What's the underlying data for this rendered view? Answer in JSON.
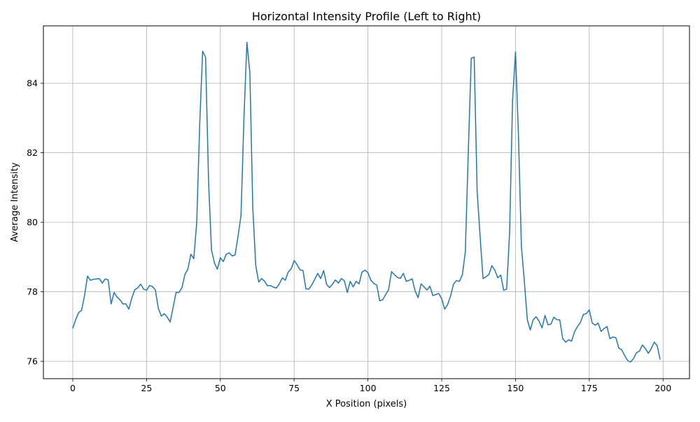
{
  "chart_data": {
    "type": "line",
    "title": "Horizontal Intensity Profile (Left to Right)",
    "xlabel": "X Position (pixels)",
    "ylabel": "Average Intensity",
    "xlim": [
      -9.95,
      208.95
    ],
    "ylim": [
      75.5,
      85.65
    ],
    "xticks": [
      0,
      25,
      50,
      75,
      100,
      125,
      150,
      175,
      200
    ],
    "yticks": [
      76,
      78,
      80,
      82,
      84
    ],
    "grid": true,
    "line_color": "#1f77b4",
    "series": [
      {
        "x": [
          0,
          1,
          2,
          3,
          4,
          5,
          6,
          7,
          8,
          9,
          10,
          11,
          12,
          13,
          14,
          15,
          16,
          17,
          18,
          19,
          20,
          21,
          22,
          23,
          24,
          25,
          26,
          27,
          28,
          29,
          30,
          31,
          32,
          33,
          34,
          35,
          36,
          37,
          38,
          39,
          40,
          41,
          42,
          43,
          44,
          45,
          46,
          47,
          48,
          49,
          50,
          51,
          52,
          53,
          54,
          55,
          56,
          57,
          58,
          59,
          60,
          61,
          62,
          63,
          64,
          65,
          66,
          67,
          68,
          69,
          70,
          71,
          72,
          73,
          74,
          75,
          76,
          77,
          78,
          79,
          80,
          81,
          82,
          83,
          84,
          85,
          86,
          87,
          88,
          89,
          90,
          91,
          92,
          93,
          94,
          95,
          96,
          97,
          98,
          99,
          100,
          101,
          102,
          103,
          104,
          105,
          106,
          107,
          108,
          109,
          110,
          111,
          112,
          113,
          114,
          115,
          116,
          117,
          118,
          119,
          120,
          121,
          122,
          123,
          124,
          125,
          126,
          127,
          128,
          129,
          130,
          131,
          132,
          133,
          134,
          135,
          136,
          137,
          138,
          139,
          140,
          141,
          142,
          143,
          144,
          145,
          146,
          147,
          148,
          149,
          150,
          151,
          152,
          153,
          154,
          155,
          156,
          157,
          158,
          159,
          160,
          161,
          162,
          163,
          164,
          165,
          166,
          167,
          168,
          169,
          170,
          171,
          172,
          173,
          174,
          175,
          176,
          177,
          178,
          179,
          180,
          181,
          182,
          183,
          184,
          185,
          186,
          187,
          188,
          189,
          190,
          191,
          192,
          193,
          194,
          195,
          196,
          197,
          198,
          199
        ],
        "values": [
          76.95,
          77.2,
          77.4,
          77.47,
          77.9,
          78.45,
          78.33,
          78.36,
          78.37,
          78.38,
          78.25,
          78.37,
          78.34,
          77.65,
          77.98,
          77.85,
          77.77,
          77.65,
          77.65,
          77.5,
          77.82,
          78.06,
          78.11,
          78.22,
          78.08,
          78.04,
          78.18,
          78.15,
          78.05,
          77.52,
          77.3,
          77.37,
          77.27,
          77.13,
          77.55,
          77.98,
          77.98,
          78.12,
          78.5,
          78.65,
          79.08,
          78.95,
          80.0,
          82.8,
          84.92,
          84.75,
          81.2,
          79.2,
          78.83,
          78.65,
          78.98,
          78.87,
          79.08,
          79.12,
          79.03,
          79.06,
          79.6,
          80.2,
          83.0,
          85.18,
          84.3,
          80.4,
          78.75,
          78.28,
          78.38,
          78.3,
          78.17,
          78.18,
          78.13,
          78.11,
          78.23,
          78.4,
          78.33,
          78.57,
          78.66,
          78.9,
          78.78,
          78.63,
          78.61,
          78.08,
          78.08,
          78.2,
          78.36,
          78.53,
          78.38,
          78.61,
          78.21,
          78.12,
          78.22,
          78.34,
          78.25,
          78.38,
          78.32,
          77.98,
          78.3,
          78.14,
          78.3,
          78.23,
          78.57,
          78.62,
          78.55,
          78.33,
          78.24,
          78.19,
          77.74,
          77.77,
          77.92,
          78.06,
          78.58,
          78.49,
          78.41,
          78.39,
          78.53,
          78.3,
          78.33,
          78.37,
          78.02,
          77.83,
          78.23,
          78.14,
          78.05,
          78.16,
          77.89,
          77.92,
          77.95,
          77.8,
          77.5,
          77.63,
          77.88,
          78.22,
          78.32,
          78.3,
          78.49,
          79.15,
          82.0,
          84.72,
          84.75,
          80.9,
          79.6,
          78.38,
          78.43,
          78.5,
          78.75,
          78.62,
          78.4,
          78.48,
          78.04,
          78.08,
          79.7,
          83.5,
          84.9,
          82.5,
          79.3,
          78.3,
          77.2,
          76.9,
          77.2,
          77.28,
          77.15,
          76.96,
          77.32,
          77.05,
          77.07,
          77.27,
          77.2,
          77.19,
          76.65,
          76.55,
          76.62,
          76.58,
          76.85,
          77.0,
          77.12,
          77.35,
          77.37,
          77.48,
          77.1,
          77.04,
          77.1,
          76.86,
          76.94,
          77.0,
          76.65,
          76.7,
          76.68,
          76.38,
          76.33,
          76.16,
          76.02,
          75.98,
          76.08,
          76.25,
          76.29,
          76.47,
          76.37,
          76.23,
          76.37,
          76.55,
          76.45,
          76.05
        ]
      }
    ]
  }
}
